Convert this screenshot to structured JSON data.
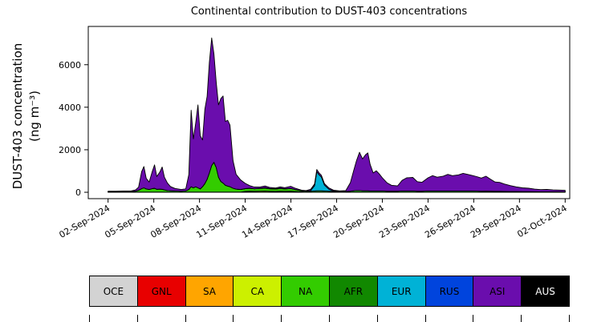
{
  "chart_data": {
    "type": "area",
    "stacked": true,
    "title": "Continental contribution to DUST-403 concentrations",
    "ylabel": [
      "DUST-403 concentration",
      "(ng m⁻³)"
    ],
    "xlabel": "",
    "x_unit": "day of month (1 = 01-Sep-2024, 32 = 02-Oct-2024)",
    "xlim": [
      0.7,
      32.3
    ],
    "ylim": [
      -300,
      7800
    ],
    "yticks": [
      0,
      2000,
      4000,
      6000
    ],
    "xticks": [
      {
        "day": 2,
        "label": "02-Sep-2024"
      },
      {
        "day": 5,
        "label": "05-Sep-2024"
      },
      {
        "day": 8,
        "label": "08-Sep-2024"
      },
      {
        "day": 11,
        "label": "11-Sep-2024"
      },
      {
        "day": 14,
        "label": "14-Sep-2024"
      },
      {
        "day": 17,
        "label": "17-Sep-2024"
      },
      {
        "day": 20,
        "label": "20-Sep-2024"
      },
      {
        "day": 23,
        "label": "23-Sep-2024"
      },
      {
        "day": 26,
        "label": "26-Sep-2024"
      },
      {
        "day": 29,
        "label": "29-Sep-2024"
      },
      {
        "day": 32,
        "label": "02-Oct-2024"
      }
    ],
    "x": [
      2,
      2.5,
      3,
      3.5,
      3.8,
      4,
      4.2,
      4.35,
      4.5,
      4.7,
      4.9,
      5.05,
      5.2,
      5.4,
      5.55,
      5.7,
      5.9,
      6.1,
      6.4,
      6.8,
      7.1,
      7.3,
      7.45,
      7.6,
      7.75,
      7.9,
      8.05,
      8.2,
      8.35,
      8.5,
      8.65,
      8.8,
      8.95,
      9.1,
      9.25,
      9.4,
      9.55,
      9.7,
      9.85,
      10,
      10.2,
      10.4,
      10.7,
      11,
      11.3,
      11.6,
      12,
      12.3,
      12.6,
      13,
      13.3,
      13.6,
      14,
      14.3,
      14.7,
      15,
      15.3,
      15.55,
      15.7,
      15.85,
      16,
      16.2,
      16.5,
      16.8,
      17.2,
      17.6,
      17.9,
      18.1,
      18.3,
      18.5,
      18.7,
      18.9,
      19.05,
      19.2,
      19.4,
      19.6,
      19.8,
      20,
      20.3,
      20.6,
      21,
      21.3,
      21.6,
      22,
      22.3,
      22.6,
      23,
      23.3,
      23.6,
      24,
      24.3,
      24.6,
      25,
      25.3,
      25.6,
      25.9,
      26.2,
      26.5,
      26.8,
      27.1,
      27.4,
      27.7,
      28,
      28.4,
      28.8,
      29.2,
      29.6,
      30,
      30.4,
      30.8,
      31.2,
      31.6,
      32
    ],
    "series": [
      {
        "name": "OCE",
        "color": "#d3d3d3",
        "values": 10
      },
      {
        "name": "GNL",
        "color": "#e80000",
        "values": 0
      },
      {
        "name": "SA",
        "color": "#ffa500",
        "values": 0
      },
      {
        "name": "CA",
        "color": "#ccf000",
        "values": [
          0,
          0,
          0,
          0,
          0,
          0,
          0,
          0,
          0,
          0,
          0,
          0,
          0,
          0,
          0,
          0,
          0,
          0,
          0,
          0,
          0,
          0,
          0,
          0,
          0,
          0,
          0,
          0,
          0,
          0,
          0,
          0,
          0,
          0,
          0,
          0,
          0,
          0,
          0,
          0,
          0,
          0,
          0,
          30,
          40,
          35,
          40,
          45,
          35,
          30,
          40,
          35,
          40,
          25,
          10,
          0,
          0,
          0,
          0,
          0,
          0,
          0,
          0,
          0,
          0,
          0,
          0,
          0,
          0,
          0,
          0,
          0,
          0,
          0,
          0,
          0,
          0,
          0,
          0,
          0,
          0,
          0,
          0,
          0,
          0,
          0,
          0,
          0,
          0,
          0,
          0,
          0,
          0,
          0,
          0,
          0,
          0,
          0,
          0,
          0,
          0,
          0,
          0,
          0,
          0,
          0,
          0,
          0,
          0,
          0,
          0,
          0,
          0
        ]
      },
      {
        "name": "NA",
        "color": "#33cc00",
        "values": [
          20,
          20,
          25,
          25,
          40,
          80,
          160,
          200,
          150,
          120,
          160,
          180,
          130,
          140,
          130,
          100,
          70,
          60,
          50,
          40,
          50,
          120,
          250,
          200,
          250,
          200,
          150,
          250,
          400,
          600,
          900,
          1250,
          1400,
          1150,
          700,
          500,
          420,
          320,
          280,
          250,
          180,
          140,
          120,
          130,
          140,
          120,
          130,
          140,
          120,
          110,
          130,
          110,
          130,
          90,
          50,
          40,
          40,
          50,
          60,
          60,
          60,
          50,
          40,
          30,
          25,
          25,
          40,
          60,
          70,
          70,
          60,
          60,
          60,
          50,
          50,
          50,
          50,
          50,
          40,
          40,
          40,
          50,
          50,
          50,
          40,
          40,
          50,
          50,
          50,
          50,
          50,
          50,
          50,
          50,
          50,
          50,
          45,
          40,
          45,
          40,
          35,
          35,
          30,
          25,
          25,
          20,
          20,
          18,
          15,
          15,
          12,
          12,
          10
        ]
      },
      {
        "name": "AFR",
        "color": "#118800",
        "values": [
          0,
          0,
          0,
          0,
          0,
          0,
          0,
          0,
          0,
          0,
          0,
          0,
          0,
          0,
          0,
          0,
          0,
          0,
          0,
          0,
          0,
          0,
          0,
          0,
          0,
          0,
          0,
          0,
          0,
          0,
          0,
          0,
          0,
          0,
          0,
          0,
          0,
          0,
          0,
          0,
          0,
          0,
          0,
          0,
          0,
          0,
          15,
          20,
          15,
          12,
          15,
          12,
          0,
          0,
          0,
          0,
          0,
          0,
          0,
          0,
          0,
          0,
          0,
          0,
          0,
          0,
          0,
          0,
          0,
          0,
          0,
          0,
          0,
          0,
          0,
          0,
          0,
          0,
          0,
          0,
          0,
          0,
          0,
          0,
          0,
          0,
          0,
          0,
          0,
          0,
          0,
          0,
          0,
          0,
          0,
          0,
          0,
          0,
          0,
          0,
          0,
          0,
          0,
          0,
          0,
          0,
          0,
          0,
          0,
          0,
          0,
          0,
          0
        ]
      },
      {
        "name": "EUR",
        "color": "#00b2d6",
        "values": [
          0,
          0,
          0,
          0,
          0,
          0,
          0,
          0,
          0,
          0,
          0,
          0,
          0,
          0,
          0,
          0,
          0,
          0,
          0,
          0,
          0,
          0,
          0,
          0,
          0,
          0,
          0,
          0,
          0,
          0,
          0,
          0,
          0,
          0,
          0,
          0,
          0,
          0,
          0,
          0,
          0,
          0,
          0,
          0,
          0,
          0,
          0,
          0,
          0,
          0,
          0,
          0,
          0,
          0,
          0,
          0,
          30,
          250,
          900,
          750,
          650,
          280,
          90,
          20,
          0,
          0,
          0,
          0,
          0,
          0,
          0,
          0,
          0,
          0,
          0,
          0,
          0,
          0,
          0,
          0,
          0,
          0,
          0,
          0,
          0,
          0,
          0,
          0,
          0,
          0,
          0,
          0,
          0,
          0,
          0,
          0,
          0,
          0,
          0,
          0,
          0,
          0,
          0,
          0,
          0,
          0,
          0,
          0,
          0,
          0,
          0,
          0,
          0
        ]
      },
      {
        "name": "RUS",
        "color": "#0044dd",
        "values": 0
      },
      {
        "name": "ASI",
        "color": "#6a0dad",
        "values": [
          20,
          20,
          25,
          25,
          60,
          150,
          800,
          1000,
          500,
          350,
          800,
          1100,
          600,
          800,
          1050,
          600,
          350,
          200,
          120,
          80,
          100,
          700,
          3600,
          2300,
          3000,
          3900,
          2500,
          2200,
          3500,
          3900,
          5200,
          6000,
          5100,
          4000,
          3400,
          3900,
          4100,
          3000,
          3100,
          2900,
          1300,
          700,
          450,
          250,
          120,
          80,
          60,
          80,
          50,
          40,
          60,
          50,
          100,
          60,
          30,
          30,
          60,
          80,
          100,
          90,
          80,
          70,
          60,
          40,
          30,
          40,
          400,
          900,
          1400,
          1800,
          1500,
          1700,
          1780,
          1250,
          850,
          950,
          800,
          620,
          400,
          280,
          250,
          500,
          620,
          640,
          450,
          420,
          620,
          720,
          650,
          700,
          780,
          720,
          760,
          830,
          780,
          730,
          680,
          620,
          700,
          560,
          440,
          420,
          350,
          280,
          220,
          180,
          160,
          120,
          100,
          110,
          90,
          80,
          70
        ]
      },
      {
        "name": "AUS",
        "color": "#000000",
        "values": 0
      }
    ],
    "outline_color": "#000000",
    "legend_position": "bottom"
  },
  "legend": {
    "items": [
      {
        "label": "OCE",
        "color": "#d3d3d3",
        "text_color": "#000000"
      },
      {
        "label": "GNL",
        "color": "#e80000",
        "text_color": "#000000"
      },
      {
        "label": "SA",
        "color": "#ffa500",
        "text_color": "#000000"
      },
      {
        "label": "CA",
        "color": "#ccf000",
        "text_color": "#000000"
      },
      {
        "label": "NA",
        "color": "#33cc00",
        "text_color": "#000000"
      },
      {
        "label": "AFR",
        "color": "#118800",
        "text_color": "#000000"
      },
      {
        "label": "EUR",
        "color": "#00b2d6",
        "text_color": "#000000"
      },
      {
        "label": "RUS",
        "color": "#0044dd",
        "text_color": "#000000"
      },
      {
        "label": "ASI",
        "color": "#6a0dad",
        "text_color": "#000000"
      },
      {
        "label": "AUS",
        "color": "#000000",
        "text_color": "#ffffff"
      }
    ]
  }
}
